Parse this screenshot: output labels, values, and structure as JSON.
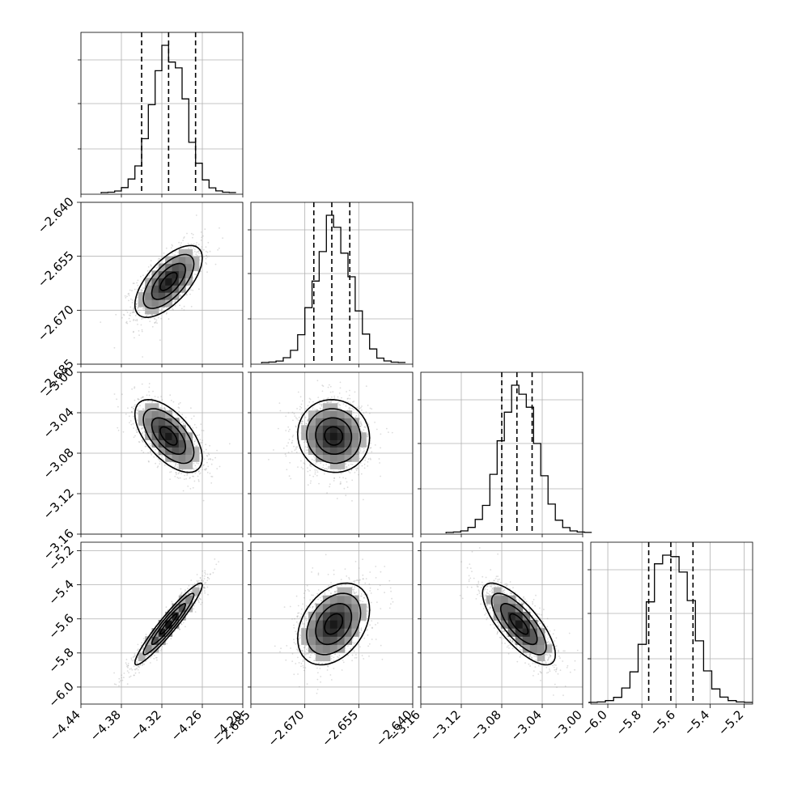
{
  "chart_data": {
    "type": "corner",
    "params": [
      {
        "range": [
          -4.44,
          -4.2
        ],
        "ticks": [
          "-4.44",
          "-4.38",
          "-4.32",
          "-4.26",
          "-4.20"
        ],
        "quantiles": [
          -4.35,
          -4.31,
          -4.27
        ],
        "mean": -4.31,
        "sd": 0.025,
        "hist_max": 1.0
      },
      {
        "range": [
          -2.685,
          -2.64
        ],
        "ticks": [
          "-2.685",
          "-2.670",
          "-2.655",
          "-2.640"
        ],
        "quantiles": [
          -2.6675,
          -2.6625,
          -2.6575
        ],
        "mean": -2.662,
        "sd": 0.005,
        "hist_max": 1.0
      },
      {
        "range": [
          -3.16,
          -3.0
        ],
        "ticks": [
          "-3.16",
          "-3.12",
          "-3.08",
          "-3.04",
          "-3.00"
        ],
        "quantiles": [
          -3.08,
          -3.065,
          -3.05
        ],
        "mean": -3.063,
        "sd": 0.018,
        "hist_max": 1.0
      },
      {
        "range": [
          -6.1,
          -5.15
        ],
        "ticks": [
          "-6.0",
          "-5.8",
          "-5.6",
          "-5.4",
          "-5.2"
        ],
        "quantiles": [
          -5.76,
          -5.63,
          -5.5
        ],
        "mean": -5.63,
        "sd": 0.12,
        "hist_max": 1.0
      }
    ],
    "correlations": [
      [
        1.0,
        0.65,
        -0.6,
        0.95
      ],
      [
        0.65,
        1.0,
        -0.05,
        0.35
      ],
      [
        -0.6,
        -0.05,
        1.0,
        -0.75
      ],
      [
        0.95,
        0.35,
        -0.75,
        1.0
      ]
    ],
    "y_tick_labels_visible": true,
    "grid": true,
    "colors": {
      "samples": "#9a9a9a",
      "line": "#000000",
      "grid": "#b0b0b0"
    }
  }
}
